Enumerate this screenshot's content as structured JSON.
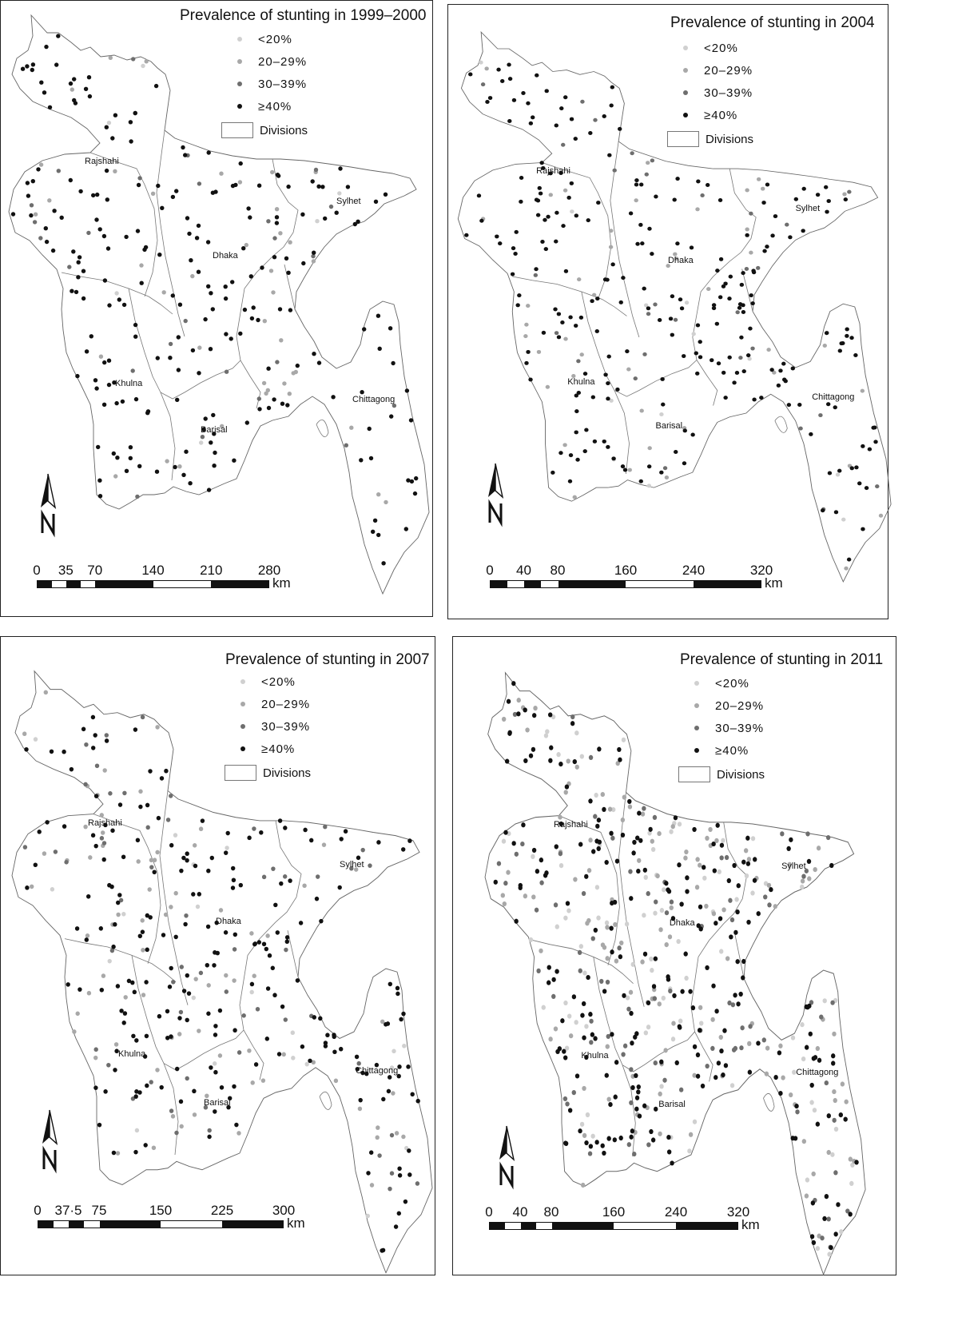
{
  "legend": {
    "classes": [
      {
        "label": "<20%",
        "color": "#d0d0d0"
      },
      {
        "label": "20–29%",
        "color": "#a8a8a8"
      },
      {
        "label": "30–39%",
        "color": "#6e6e6e"
      },
      {
        "label": "≥40%",
        "color": "#111111"
      }
    ],
    "divisions_label": "Divisions"
  },
  "division_names": [
    "Rajshahi",
    "Sylhet",
    "Dhaka",
    "Khulna",
    "Barisal",
    "Chittagong"
  ],
  "scale_unit": "km",
  "panels": [
    {
      "title": "Prevalence of stunting in 1999–2000",
      "scale_ticks": [
        "0",
        "35",
        "70",
        "140",
        "210",
        "280"
      ],
      "cluster_counts": {
        "<20%": 6,
        "20–29%": 40,
        "30–39%": 25,
        "≥40%": 210
      }
    },
    {
      "title": "Prevalence of stunting in 2004",
      "scale_ticks": [
        "0",
        "40",
        "80",
        "160",
        "240",
        "320"
      ],
      "cluster_counts": {
        "<20%": 12,
        "20–29%": 45,
        "30–39%": 30,
        "≥40%": 230
      }
    },
    {
      "title": "Prevalence of stunting in 2007",
      "scale_ticks": [
        "0",
        "37·5",
        "75",
        "150",
        "225",
        "300"
      ],
      "cluster_counts": {
        "<20%": 20,
        "20–29%": 75,
        "30–39%": 55,
        "≥40%": 210
      }
    },
    {
      "title": "Prevalence of stunting in 2011",
      "scale_ticks": [
        "0",
        "40",
        "80",
        "160",
        "240",
        "320"
      ],
      "cluster_counts": {
        "<20%": 90,
        "20–29%": 120,
        "30–39%": 85,
        "≥40%": 230
      }
    }
  ]
}
